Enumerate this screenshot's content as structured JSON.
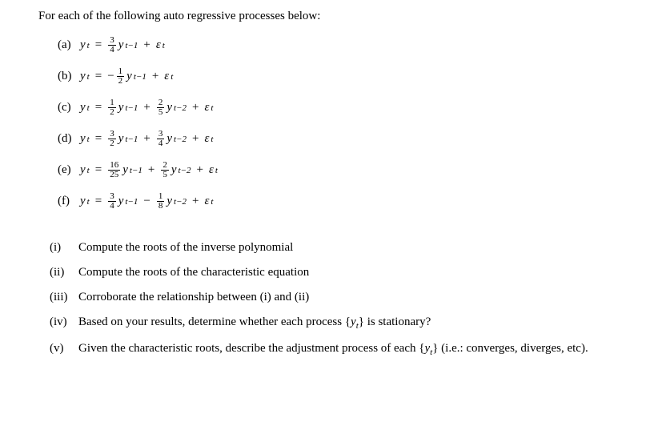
{
  "intro": "For each of the following auto regressive processes below:",
  "eqs": [
    {
      "label": "(a)",
      "terms": [
        {
          "frac": [
            "3",
            "4"
          ],
          "sub": "t−1",
          "sign": ""
        }
      ]
    },
    {
      "label": "(b)",
      "terms": [
        {
          "frac": [
            "1",
            "2"
          ],
          "sub": "t−1",
          "sign": "−"
        }
      ]
    },
    {
      "label": "(c)",
      "terms": [
        {
          "frac": [
            "1",
            "2"
          ],
          "sub": "t−1",
          "sign": ""
        },
        {
          "frac": [
            "2",
            "5"
          ],
          "sub": "t−2",
          "sign": "+"
        }
      ]
    },
    {
      "label": "(d)",
      "terms": [
        {
          "frac": [
            "3",
            "2"
          ],
          "sub": "t−1",
          "sign": ""
        },
        {
          "frac": [
            "3",
            "4"
          ],
          "sub": "t−2",
          "sign": "+"
        }
      ]
    },
    {
      "label": "(e)",
      "terms": [
        {
          "frac": [
            "16",
            "25"
          ],
          "sub": "t−1",
          "sign": ""
        },
        {
          "frac": [
            "2",
            "5"
          ],
          "sub": "t−2",
          "sign": "+"
        }
      ]
    },
    {
      "label": "(f)",
      "terms": [
        {
          "frac": [
            "3",
            "4"
          ],
          "sub": "t−1",
          "sign": ""
        },
        {
          "frac": [
            "1",
            "8"
          ],
          "sub": "t−2",
          "sign": "−"
        }
      ]
    }
  ],
  "questions": [
    {
      "label": "(i)",
      "text": "Compute the roots of the inverse polynomial"
    },
    {
      "label": "(ii)",
      "text": "Compute the roots of the characteristic equation"
    },
    {
      "label": "(iii)",
      "text": "Corroborate the relationship between (i) and (ii)"
    },
    {
      "label": "(iv)",
      "text": "Based on your results, determine whether each process {yₜ} is stationary?"
    },
    {
      "label": "(v)",
      "text": "Given the characteristic roots, describe the adjustment process of each {yₜ} (i.e.: converges, diverges, etc)."
    }
  ],
  "sym": {
    "y": "y",
    "eq": "=",
    "eps": "ε",
    "t": "t",
    "plus": "+"
  }
}
